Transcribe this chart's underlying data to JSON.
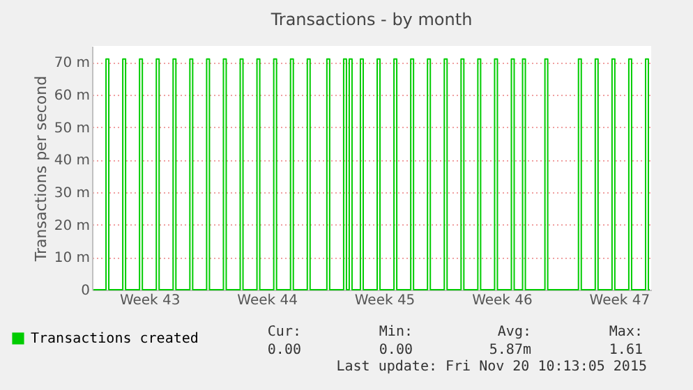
{
  "chart_data": {
    "type": "step",
    "title": "Transactions - by month",
    "ylabel": "Transactions per second",
    "ylim": [
      0,
      75
    ],
    "yticks": [
      0,
      {
        "value": 10,
        "label": "10 m"
      },
      {
        "value": 20,
        "label": "20 m"
      },
      {
        "value": 30,
        "label": "30 m"
      },
      {
        "value": 40,
        "label": "40 m"
      },
      {
        "value": 50,
        "label": "50 m"
      },
      {
        "value": 60,
        "label": "60 m"
      },
      {
        "value": 70,
        "label": "70 m"
      }
    ],
    "grid": "y",
    "legend": "bottom left",
    "marker": "none",
    "line_style": "solid",
    "annotations": [
      "Cur:",
      "Min:",
      "Avg:",
      "Max:",
      "0.00",
      "0.00",
      "5.87m",
      "1.61",
      "Last update: Fri Nov 20 10:13:05 2015"
    ],
    "categories": [
      null,
      null,
      null,
      null,
      null,
      null,
      null,
      null,
      null,
      null,
      null,
      null,
      null,
      null,
      null,
      null,
      null,
      null,
      null,
      null,
      "Week 43",
      null,
      null,
      null,
      null,
      null,
      null,
      null,
      null,
      null,
      null,
      null,
      null,
      null,
      null,
      null,
      null,
      null,
      null,
      null,
      null,
      null,
      null,
      null,
      null,
      null,
      null,
      null,
      null,
      null,
      null,
      null,
      null,
      null,
      null,
      null,
      null,
      null,
      null,
      null,
      null,
      null,
      "Week 44",
      null,
      null,
      null,
      null,
      null,
      null,
      null,
      null,
      null,
      null,
      null,
      null,
      null,
      null,
      null,
      null,
      null,
      null,
      null,
      null,
      null,
      null,
      null,
      null,
      null,
      null,
      null,
      null,
      null,
      null,
      null,
      null,
      null,
      null,
      null,
      null,
      null,
      null,
      null,
      null,
      null,
      "Week 45",
      null,
      null,
      null,
      null,
      null,
      null,
      null,
      null,
      null,
      null,
      null,
      null,
      null,
      null,
      null,
      null,
      null,
      null,
      null,
      null,
      null,
      null,
      null,
      null,
      null,
      null,
      null,
      null,
      null,
      null,
      null,
      null,
      null,
      null,
      null,
      null,
      null,
      null,
      null,
      null,
      null,
      "Week 46",
      null,
      null,
      null,
      null,
      null,
      null,
      null,
      null,
      null,
      null,
      null,
      null,
      null,
      null,
      null,
      null,
      null,
      null,
      null,
      null,
      null,
      null,
      null,
      null,
      null,
      null,
      null,
      null,
      null,
      null,
      null,
      null,
      null,
      null,
      null,
      null,
      null,
      null,
      null,
      null,
      null,
      "Week 47",
      null,
      null,
      null,
      null,
      null,
      null,
      null,
      null,
      null,
      null,
      null
    ],
    "series": [
      {
        "name": "Transactions created",
        "color": "#00cc00",
        "values": [
          0,
          0,
          0,
          0,
          0,
          71,
          0,
          0,
          0,
          0,
          0,
          71,
          0,
          0,
          0,
          0,
          0,
          71,
          0,
          0,
          0,
          0,
          0,
          71,
          0,
          0,
          0,
          0,
          0,
          71,
          0,
          0,
          0,
          0,
          0,
          71,
          0,
          0,
          0,
          0,
          0,
          71,
          0,
          0,
          0,
          0,
          0,
          71,
          0,
          0,
          0,
          0,
          0,
          71,
          0,
          0,
          0,
          0,
          0,
          71,
          0,
          0,
          0,
          0,
          0,
          71,
          0,
          0,
          0,
          0,
          0,
          71,
          0,
          0,
          0,
          0,
          0,
          71,
          0,
          0,
          0,
          0,
          0,
          0,
          71,
          0,
          0,
          0,
          0,
          0,
          71,
          0,
          71,
          0,
          0,
          0,
          71,
          0,
          0,
          0,
          0,
          0,
          71,
          0,
          0,
          0,
          0,
          0,
          71,
          0,
          0,
          0,
          0,
          0,
          71,
          0,
          0,
          0,
          0,
          0,
          71,
          0,
          0,
          0,
          0,
          0,
          71,
          0,
          0,
          0,
          0,
          0,
          71,
          0,
          0,
          0,
          0,
          0,
          71,
          0,
          0,
          0,
          0,
          0,
          71,
          0,
          0,
          0,
          0,
          0,
          71,
          0,
          0,
          0,
          71,
          0,
          0,
          0,
          0,
          0,
          0,
          0,
          71,
          0,
          0,
          0,
          0,
          0,
          0,
          0,
          0,
          0,
          0,
          0,
          71,
          0,
          0,
          0,
          0,
          0,
          71,
          0,
          0,
          0,
          0,
          0,
          71,
          0,
          0,
          0,
          0,
          0,
          71,
          0,
          0,
          0,
          0,
          0,
          71,
          0
        ]
      }
    ]
  }
}
